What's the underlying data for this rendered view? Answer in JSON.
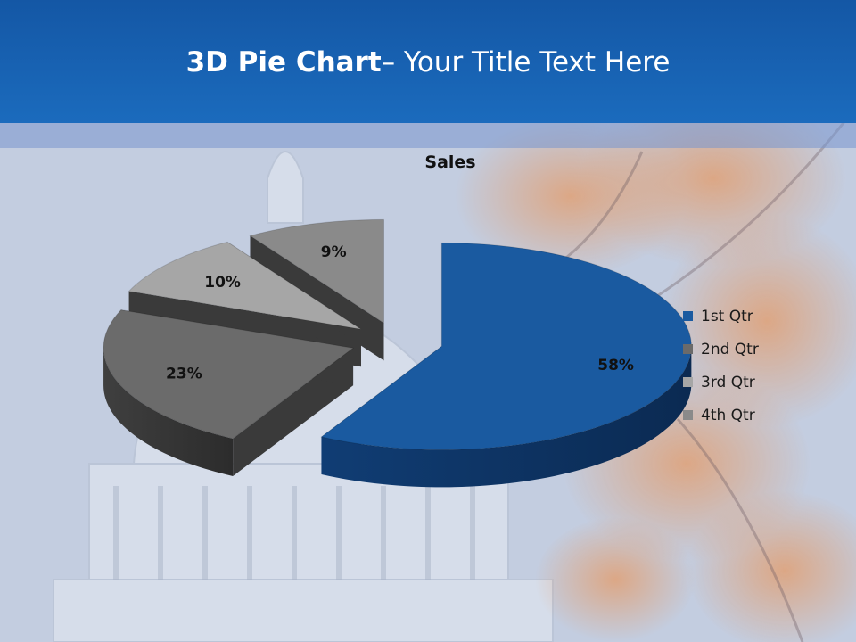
{
  "slide": {
    "title_bold": "3D Pie Chart",
    "title_rest": "– Your Title Text Here"
  },
  "chart_data": {
    "type": "pie",
    "style": "3d-exploded",
    "title": "Sales",
    "categories": [
      "1st Qtr",
      "2nd Qtr",
      "3rd Qtr",
      "4th Qtr"
    ],
    "values": [
      58,
      23,
      10,
      9
    ],
    "data_labels": [
      "58%",
      "23%",
      "10%",
      "9%"
    ],
    "colors": [
      "#1a5aa0",
      "#6a6a6a",
      "#a6a6a6",
      "#8a8a8a"
    ],
    "legend": {
      "position": "right",
      "items": [
        {
          "label": "1st Qtr",
          "color": "#1a5aa0"
        },
        {
          "label": "2nd Qtr",
          "color": "#6a6a6a"
        },
        {
          "label": "3rd Qtr",
          "color": "#a6a6a6"
        },
        {
          "label": "4th Qtr",
          "color": "#8a8a8a"
        }
      ]
    }
  }
}
